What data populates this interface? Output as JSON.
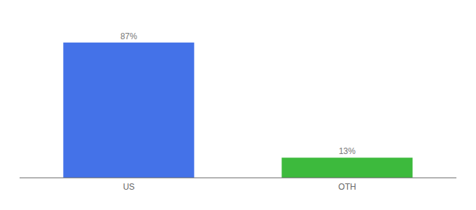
{
  "chart_data": {
    "type": "bar",
    "categories": [
      "US",
      "OTH"
    ],
    "values": [
      87,
      13
    ],
    "value_labels": [
      "87%",
      "13%"
    ],
    "colors": [
      "#4472e8",
      "#3dba3d"
    ],
    "ylim": [
      0,
      100
    ],
    "data_labels": true,
    "tick_labels": "x",
    "grid": false
  }
}
